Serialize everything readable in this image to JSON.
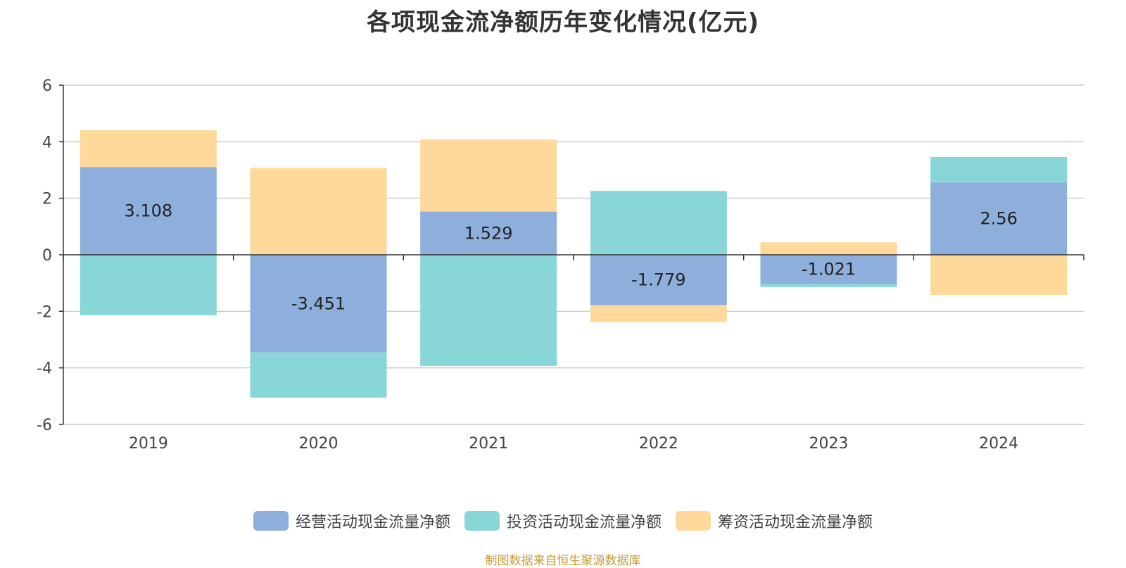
{
  "chart_data": {
    "type": "bar",
    "stacked": true,
    "title": "各项现金流净额历年变化情况(亿元)",
    "categories": [
      "2019",
      "2020",
      "2021",
      "2022",
      "2023",
      "2024"
    ],
    "series": [
      {
        "name": "经营活动现金流量净额",
        "color": "#8eaedb",
        "values": [
          3.108,
          -3.451,
          1.529,
          -1.779,
          -1.021,
          2.56
        ]
      },
      {
        "name": "投资活动现金流量净额",
        "color": "#88d6d8",
        "values": [
          -2.14,
          -1.6,
          -3.93,
          2.26,
          -0.12,
          0.9
        ]
      },
      {
        "name": "筹资活动现金流量净额",
        "color": "#fed99b",
        "values": [
          1.3,
          3.07,
          2.55,
          -0.6,
          0.44,
          -1.42
        ]
      }
    ],
    "data_labels": [
      "3.108",
      "-3.451",
      "1.529",
      "-1.779",
      "-1.021",
      "2.56"
    ],
    "yticks": [
      "6",
      "4",
      "2",
      "0",
      "-2",
      "-4",
      "-6"
    ],
    "ylim": [
      -6,
      6
    ],
    "grid": true,
    "legend_position": "bottom"
  },
  "source_note": "制图数据来自恒生聚源数据库"
}
